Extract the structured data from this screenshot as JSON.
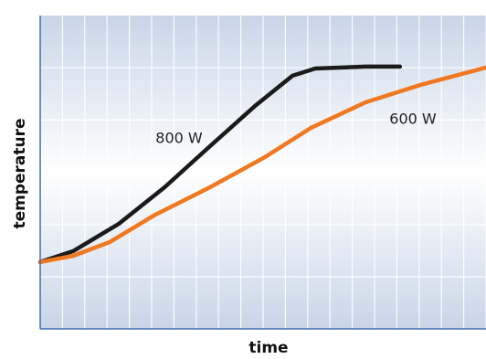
{
  "chart_data": {
    "type": "line",
    "x_label": "time",
    "y_label": "temperature",
    "xlim": [
      0,
      100
    ],
    "ylim": [
      0,
      100
    ],
    "grid": true,
    "series": [
      {
        "name": "800 W",
        "color": "#1a1a1a",
        "x": [
          0,
          7.4,
          17.6,
          27.9,
          38.1,
          48.4,
          56.6,
          61.7,
          73.0,
          80.7
        ],
        "values": [
          21.3,
          24.8,
          33.5,
          45.2,
          58.3,
          71.4,
          80.8,
          83.1,
          83.7,
          83.7
        ]
      },
      {
        "name": "600 W",
        "color": "#f07820",
        "x": [
          0,
          7.4,
          15.6,
          25.8,
          38.1,
          50.4,
          60.7,
          73.0,
          85.2,
          100
        ],
        "values": [
          21.3,
          23.3,
          27.7,
          36.4,
          45.2,
          54.8,
          64.1,
          72.3,
          77.8,
          83.4
        ]
      }
    ]
  }
}
